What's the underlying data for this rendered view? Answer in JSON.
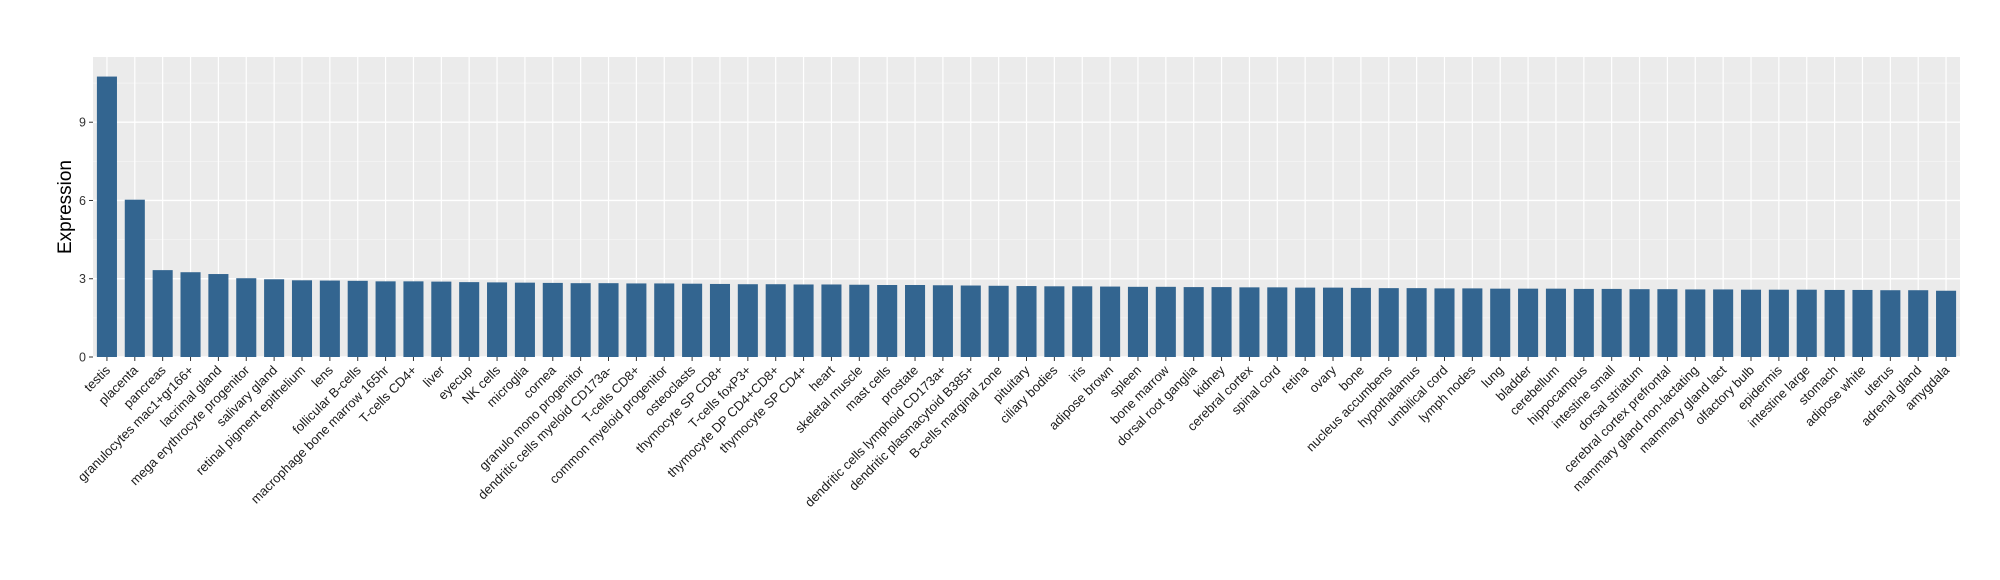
{
  "chart_data": {
    "type": "bar",
    "title": "",
    "xlabel": "",
    "ylabel": "Expression",
    "ylim": [
      0,
      11.5
    ],
    "yticks": [
      0,
      3,
      6,
      9
    ],
    "grid": true,
    "legend": "none",
    "colors": {
      "bar": "#336590",
      "panel": "#EBEBEB",
      "grid_major": "#FFFFFF",
      "grid_minor": "#F4F4F4"
    },
    "categories": [
      "testis",
      "placenta",
      "pancreas",
      "granulocytes mac1+gr166+",
      "lacrimal gland",
      "mega erythrocyte progenitor",
      "salivary gland",
      "retinal pigment epithelium",
      "lens",
      "follicular B-cells",
      "macrophage bone marrow 165hr",
      "T-cells CD4+",
      "liver",
      "eyecup",
      "NK cells",
      "microglia",
      "cornea",
      "granulo mono progenitor",
      "dendritic cells myeloid CD173a-",
      "T-cells CD8+",
      "common myeloid progenitor",
      "osteoclasts",
      "thymocyte SP CD8+",
      "T-cells foxP3+",
      "thymocyte DP CD4+CD8+",
      "thymocyte SP CD4+",
      "heart",
      "skeletal muscle",
      "mast cells",
      "prostate",
      "dendritic cells lymphoid CD173a+",
      "dendritic plasmacytoid B385+",
      "B-cells marginal zone",
      "pituitary",
      "ciliary bodies",
      "iris",
      "adipose brown",
      "spleen",
      "bone marrow",
      "dorsal root ganglia",
      "kidney",
      "cerebral cortex",
      "spinal cord",
      "retina",
      "ovary",
      "bone",
      "nucleus accumbens",
      "hypothalamus",
      "umbilical cord",
      "lymph nodes",
      "lung",
      "bladder",
      "cerebellum",
      "hippocampus",
      "intestine small",
      "dorsal striatum",
      "cerebral cortex prefrontal",
      "mammary gland non-lactating",
      "mammary gland lact",
      "olfactory bulb",
      "epidermis",
      "intestine large",
      "stomach",
      "adipose white",
      "uterus",
      "adrenal gland",
      "amygdala"
    ],
    "values": [
      10.75,
      6.03,
      3.33,
      3.25,
      3.18,
      3.02,
      2.98,
      2.94,
      2.93,
      2.92,
      2.9,
      2.9,
      2.89,
      2.87,
      2.86,
      2.85,
      2.84,
      2.83,
      2.83,
      2.82,
      2.82,
      2.81,
      2.8,
      2.79,
      2.79,
      2.78,
      2.78,
      2.77,
      2.76,
      2.76,
      2.75,
      2.74,
      2.73,
      2.72,
      2.71,
      2.71,
      2.7,
      2.69,
      2.69,
      2.68,
      2.68,
      2.67,
      2.67,
      2.66,
      2.66,
      2.65,
      2.64,
      2.64,
      2.63,
      2.63,
      2.62,
      2.62,
      2.62,
      2.61,
      2.61,
      2.6,
      2.6,
      2.59,
      2.59,
      2.58,
      2.58,
      2.58,
      2.57,
      2.57,
      2.56,
      2.56,
      2.54
    ]
  }
}
